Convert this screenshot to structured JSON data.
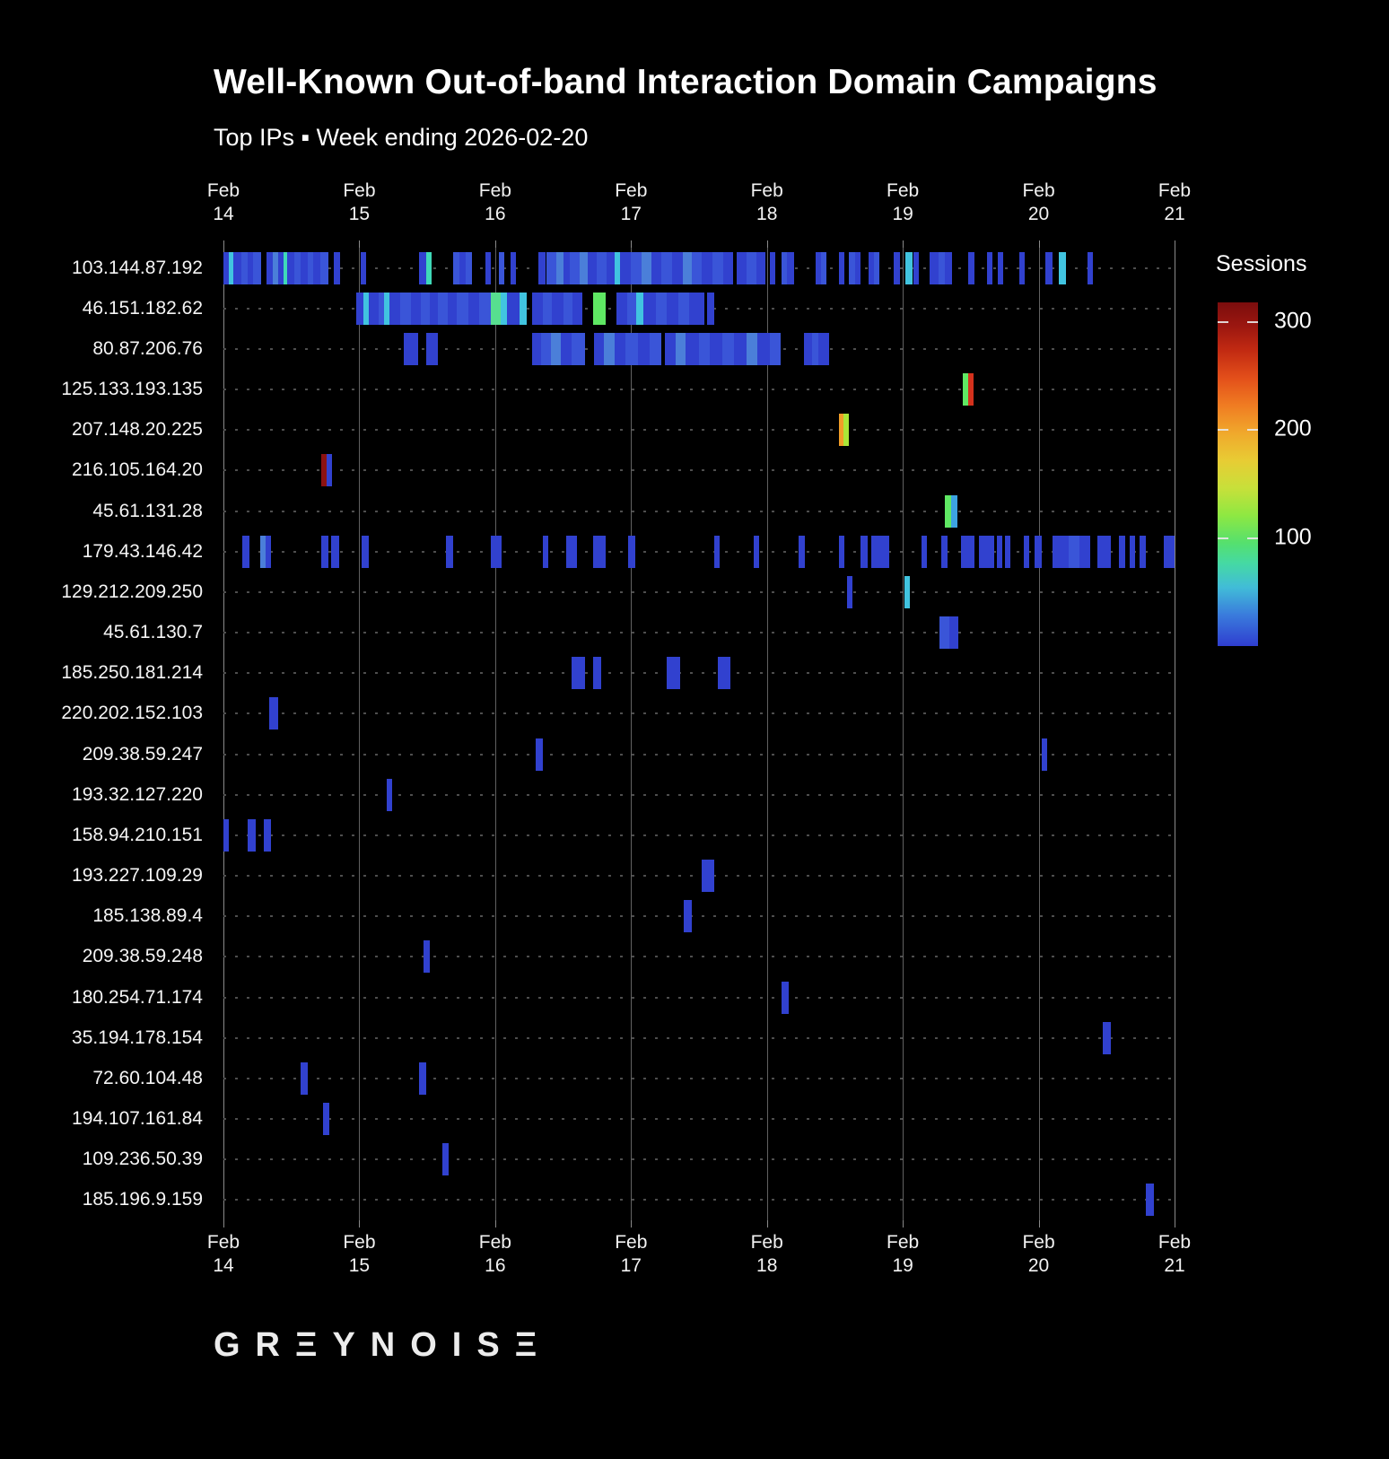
{
  "title": "Well-Known Out-of-band Interaction Domain Campaigns",
  "subtitle": "Top IPs ▪ Week ending 2026-02-20",
  "logo": "GRΞYNOISΞ",
  "axis": {
    "day_labels": [
      {
        "month": "Feb",
        "day": "14"
      },
      {
        "month": "Feb",
        "day": "15"
      },
      {
        "month": "Feb",
        "day": "16"
      },
      {
        "month": "Feb",
        "day": "17"
      },
      {
        "month": "Feb",
        "day": "18"
      },
      {
        "month": "Feb",
        "day": "19"
      },
      {
        "month": "Feb",
        "day": "20"
      },
      {
        "month": "Feb",
        "day": "21"
      }
    ]
  },
  "legend": {
    "title": "Sessions"
  },
  "chart_data": {
    "type": "heatmap",
    "title": "Well-Known Out-of-band Interaction Domain Campaigns",
    "subtitle": "Top IPs ▪ Week ending 2026-02-20",
    "x_axis": {
      "unit": "days since Feb 14",
      "range": [
        0,
        7
      ],
      "tick_labels": [
        "Feb 14",
        "Feb 15",
        "Feb 16",
        "Feb 17",
        "Feb 18",
        "Feb 19",
        "Feb 20",
        "Feb 21"
      ]
    },
    "legend_title": "Sessions",
    "color_scale": {
      "min": 0,
      "max": 317,
      "ticks": [
        300,
        200,
        100
      ],
      "style": "jet (blue=low, dark red=high)"
    },
    "palette": {
      "b": {
        "hex": "#3141cf",
        "sessions": 20
      },
      "b2": {
        "hex": "#3a55d8",
        "sessions": 35
      },
      "lb": {
        "hex": "#4b7fd9",
        "sessions": 55
      },
      "sb": {
        "hex": "#3da3e2",
        "sessions": 65
      },
      "cy": {
        "hex": "#41c4e0",
        "sessions": 80
      },
      "tl": {
        "hex": "#3fd9b8",
        "sessions": 95
      },
      "sg": {
        "hex": "#57de8f",
        "sessions": 110
      },
      "gr": {
        "hex": "#5fe863",
        "sessions": 125
      },
      "yg": {
        "hex": "#aae637",
        "sessions": 165
      },
      "or": {
        "hex": "#f09d28",
        "sessions": 220
      },
      "rd": {
        "hex": "#d4311c",
        "sessions": 275
      },
      "dr": {
        "hex": "#8c1211",
        "sessions": 310
      }
    },
    "rows": [
      {
        "ip": "103.144.87.192",
        "segments": [
          [
            0.0,
            0.04,
            "b"
          ],
          [
            0.04,
            0.07,
            "cy"
          ],
          [
            0.07,
            0.13,
            "b"
          ],
          [
            0.13,
            0.18,
            "b2"
          ],
          [
            0.18,
            0.22,
            "b"
          ],
          [
            0.22,
            0.28,
            "b2"
          ],
          [
            0.32,
            0.36,
            "b"
          ],
          [
            0.36,
            0.4,
            "lb"
          ],
          [
            0.4,
            0.44,
            "b"
          ],
          [
            0.44,
            0.47,
            "tl"
          ],
          [
            0.47,
            0.52,
            "b"
          ],
          [
            0.52,
            0.57,
            "b2"
          ],
          [
            0.57,
            0.62,
            "b"
          ],
          [
            0.62,
            0.66,
            "b2"
          ],
          [
            0.66,
            0.71,
            "b"
          ],
          [
            0.71,
            0.77,
            "b2"
          ],
          [
            0.81,
            0.86,
            "b"
          ],
          [
            1.01,
            1.05,
            "b"
          ],
          [
            1.44,
            1.49,
            "b"
          ],
          [
            1.49,
            1.53,
            "tl"
          ],
          [
            1.69,
            1.74,
            "b2"
          ],
          [
            1.74,
            1.78,
            "b"
          ],
          [
            1.78,
            1.83,
            "b2"
          ],
          [
            1.93,
            1.96,
            "b"
          ],
          [
            2.03,
            2.06,
            "b2"
          ],
          [
            2.11,
            2.14,
            "b"
          ],
          [
            2.32,
            2.37,
            "b"
          ],
          [
            2.38,
            2.45,
            "b2"
          ],
          [
            2.45,
            2.5,
            "lb"
          ],
          [
            2.5,
            2.55,
            "b"
          ],
          [
            2.55,
            2.62,
            "b2"
          ],
          [
            2.62,
            2.68,
            "lb"
          ],
          [
            2.68,
            2.75,
            "b"
          ],
          [
            2.75,
            2.82,
            "b2"
          ],
          [
            2.82,
            2.88,
            "b"
          ],
          [
            2.88,
            2.92,
            "cy"
          ],
          [
            2.92,
            3.0,
            "b"
          ],
          [
            3.0,
            3.08,
            "b2"
          ],
          [
            3.08,
            3.15,
            "lb"
          ],
          [
            3.15,
            3.22,
            "b"
          ],
          [
            3.22,
            3.3,
            "b2"
          ],
          [
            3.3,
            3.38,
            "b"
          ],
          [
            3.38,
            3.45,
            "lb"
          ],
          [
            3.45,
            3.52,
            "b2"
          ],
          [
            3.52,
            3.6,
            "b"
          ],
          [
            3.6,
            3.68,
            "b2"
          ],
          [
            3.68,
            3.75,
            "b"
          ],
          [
            3.78,
            3.85,
            "b"
          ],
          [
            3.85,
            3.92,
            "b2"
          ],
          [
            3.92,
            3.99,
            "b"
          ],
          [
            4.02,
            4.06,
            "b"
          ],
          [
            4.11,
            4.15,
            "b2"
          ],
          [
            4.15,
            4.2,
            "b"
          ],
          [
            4.36,
            4.4,
            "b"
          ],
          [
            4.4,
            4.44,
            "b2"
          ],
          [
            4.53,
            4.57,
            "b"
          ],
          [
            4.6,
            4.65,
            "b2"
          ],
          [
            4.65,
            4.69,
            "b"
          ],
          [
            4.75,
            4.79,
            "b"
          ],
          [
            4.79,
            4.82,
            "b2"
          ],
          [
            4.93,
            4.98,
            "b"
          ],
          [
            5.02,
            5.07,
            "cy"
          ],
          [
            5.08,
            5.12,
            "b"
          ],
          [
            5.2,
            5.26,
            "b"
          ],
          [
            5.26,
            5.31,
            "b2"
          ],
          [
            5.31,
            5.36,
            "b"
          ],
          [
            5.48,
            5.53,
            "b"
          ],
          [
            5.62,
            5.66,
            "b"
          ],
          [
            5.7,
            5.74,
            "b"
          ],
          [
            5.86,
            5.9,
            "b"
          ],
          [
            6.05,
            6.1,
            "b"
          ],
          [
            6.15,
            6.2,
            "cy"
          ],
          [
            6.36,
            6.4,
            "b"
          ]
        ]
      },
      {
        "ip": "46.151.182.62",
        "segments": [
          [
            0.98,
            1.03,
            "b"
          ],
          [
            1.03,
            1.07,
            "cy"
          ],
          [
            1.07,
            1.14,
            "b"
          ],
          [
            1.14,
            1.18,
            "b2"
          ],
          [
            1.18,
            1.22,
            "cy"
          ],
          [
            1.22,
            1.3,
            "b"
          ],
          [
            1.3,
            1.38,
            "b2"
          ],
          [
            1.38,
            1.45,
            "b"
          ],
          [
            1.45,
            1.52,
            "b2"
          ],
          [
            1.52,
            1.58,
            "b"
          ],
          [
            1.58,
            1.65,
            "b2"
          ],
          [
            1.65,
            1.72,
            "b"
          ],
          [
            1.72,
            1.8,
            "b2"
          ],
          [
            1.8,
            1.88,
            "b"
          ],
          [
            1.88,
            1.97,
            "b2"
          ],
          [
            1.97,
            2.04,
            "sg"
          ],
          [
            2.04,
            2.09,
            "cy"
          ],
          [
            2.09,
            2.18,
            "b"
          ],
          [
            2.18,
            2.23,
            "cy"
          ],
          [
            2.27,
            2.35,
            "b"
          ],
          [
            2.35,
            2.42,
            "b2"
          ],
          [
            2.42,
            2.5,
            "b"
          ],
          [
            2.5,
            2.57,
            "b2"
          ],
          [
            2.57,
            2.64,
            "b"
          ],
          [
            2.72,
            2.81,
            "gr"
          ],
          [
            2.89,
            2.97,
            "b"
          ],
          [
            2.97,
            3.04,
            "b2"
          ],
          [
            3.04,
            3.09,
            "cy"
          ],
          [
            3.09,
            3.18,
            "b"
          ],
          [
            3.18,
            3.26,
            "b2"
          ],
          [
            3.26,
            3.35,
            "b"
          ],
          [
            3.35,
            3.43,
            "b2"
          ],
          [
            3.43,
            3.54,
            "b"
          ],
          [
            3.56,
            3.61,
            "b"
          ]
        ]
      },
      {
        "ip": "80.87.206.76",
        "segments": [
          [
            1.33,
            1.43,
            "b"
          ],
          [
            1.49,
            1.58,
            "b"
          ],
          [
            2.27,
            2.34,
            "b"
          ],
          [
            2.34,
            2.41,
            "b2"
          ],
          [
            2.41,
            2.48,
            "lb"
          ],
          [
            2.48,
            2.56,
            "b"
          ],
          [
            2.56,
            2.66,
            "b2"
          ],
          [
            2.73,
            2.8,
            "b"
          ],
          [
            2.8,
            2.88,
            "lb"
          ],
          [
            2.88,
            2.96,
            "b"
          ],
          [
            2.96,
            3.05,
            "b2"
          ],
          [
            3.05,
            3.14,
            "b"
          ],
          [
            3.14,
            3.22,
            "b2"
          ],
          [
            3.25,
            3.33,
            "b"
          ],
          [
            3.33,
            3.4,
            "lb"
          ],
          [
            3.4,
            3.5,
            "b"
          ],
          [
            3.5,
            3.58,
            "b2"
          ],
          [
            3.58,
            3.67,
            "b"
          ],
          [
            3.67,
            3.76,
            "b2"
          ],
          [
            3.76,
            3.85,
            "b"
          ],
          [
            3.85,
            3.93,
            "lb"
          ],
          [
            3.93,
            4.02,
            "b"
          ],
          [
            4.02,
            4.1,
            "b2"
          ],
          [
            4.27,
            4.33,
            "b"
          ],
          [
            4.33,
            4.38,
            "b2"
          ],
          [
            4.38,
            4.46,
            "b"
          ]
        ]
      },
      {
        "ip": "125.133.193.135",
        "segments": [
          [
            5.44,
            5.48,
            "gr"
          ],
          [
            5.48,
            5.52,
            "rd"
          ]
        ]
      },
      {
        "ip": "207.148.20.225",
        "segments": [
          [
            4.53,
            4.565,
            "or"
          ],
          [
            4.565,
            4.6,
            "yg"
          ]
        ]
      },
      {
        "ip": "216.105.164.20",
        "segments": [
          [
            0.72,
            0.76,
            "dr"
          ],
          [
            0.76,
            0.8,
            "b"
          ]
        ]
      },
      {
        "ip": "45.61.131.28",
        "segments": [
          [
            5.31,
            5.355,
            "gr"
          ],
          [
            5.355,
            5.4,
            "sb"
          ]
        ]
      },
      {
        "ip": "179.43.146.42",
        "segments": [
          [
            0.14,
            0.19,
            "b"
          ],
          [
            0.27,
            0.31,
            "lb"
          ],
          [
            0.31,
            0.35,
            "b"
          ],
          [
            0.72,
            0.77,
            "b"
          ],
          [
            0.79,
            0.85,
            "b"
          ],
          [
            1.02,
            1.07,
            "b"
          ],
          [
            1.64,
            1.69,
            "b"
          ],
          [
            1.97,
            2.05,
            "b"
          ],
          [
            2.35,
            2.39,
            "b"
          ],
          [
            2.52,
            2.6,
            "b"
          ],
          [
            2.72,
            2.81,
            "b"
          ],
          [
            2.98,
            3.03,
            "b"
          ],
          [
            3.61,
            3.65,
            "b"
          ],
          [
            3.9,
            3.94,
            "b"
          ],
          [
            4.23,
            4.28,
            "b"
          ],
          [
            4.53,
            4.57,
            "b"
          ],
          [
            4.69,
            4.74,
            "b"
          ],
          [
            4.77,
            4.9,
            "b"
          ],
          [
            5.14,
            5.18,
            "b"
          ],
          [
            5.28,
            5.33,
            "b"
          ],
          [
            5.43,
            5.53,
            "b"
          ],
          [
            5.56,
            5.67,
            "b"
          ],
          [
            5.69,
            5.73,
            "b"
          ],
          [
            5.75,
            5.79,
            "b"
          ],
          [
            5.89,
            5.93,
            "b"
          ],
          [
            5.97,
            6.02,
            "b"
          ],
          [
            6.1,
            6.22,
            "b"
          ],
          [
            6.22,
            6.3,
            "b2"
          ],
          [
            6.3,
            6.38,
            "b"
          ],
          [
            6.43,
            6.53,
            "b"
          ],
          [
            6.59,
            6.64,
            "b"
          ],
          [
            6.67,
            6.71,
            "b"
          ],
          [
            6.74,
            6.79,
            "b"
          ],
          [
            6.92,
            7.0,
            "b"
          ]
        ]
      },
      {
        "ip": "129.212.209.250",
        "segments": [
          [
            4.59,
            4.63,
            "b"
          ],
          [
            5.01,
            5.05,
            "cy"
          ]
        ]
      },
      {
        "ip": "45.61.130.7",
        "segments": [
          [
            5.27,
            5.34,
            "b2"
          ],
          [
            5.34,
            5.41,
            "b"
          ]
        ]
      },
      {
        "ip": "185.250.181.214",
        "segments": [
          [
            2.56,
            2.66,
            "b"
          ],
          [
            2.72,
            2.78,
            "b"
          ],
          [
            3.26,
            3.36,
            "b"
          ],
          [
            3.64,
            3.73,
            "b"
          ]
        ]
      },
      {
        "ip": "220.202.152.103",
        "segments": [
          [
            0.34,
            0.4,
            "b"
          ]
        ]
      },
      {
        "ip": "209.38.59.247",
        "segments": [
          [
            2.3,
            2.35,
            "b"
          ],
          [
            6.02,
            6.06,
            "b"
          ]
        ]
      },
      {
        "ip": "193.32.127.220",
        "segments": [
          [
            1.2,
            1.24,
            "b"
          ]
        ]
      },
      {
        "ip": "158.94.210.151",
        "segments": [
          [
            0.0,
            0.03,
            "b"
          ],
          [
            0.18,
            0.24,
            "b"
          ],
          [
            0.3,
            0.35,
            "b"
          ]
        ]
      },
      {
        "ip": "193.227.109.29",
        "segments": [
          [
            3.52,
            3.61,
            "b"
          ]
        ]
      },
      {
        "ip": "185.138.89.4",
        "segments": [
          [
            3.39,
            3.45,
            "b"
          ]
        ]
      },
      {
        "ip": "209.38.59.248",
        "segments": [
          [
            1.47,
            1.52,
            "b"
          ]
        ]
      },
      {
        "ip": "180.254.71.174",
        "segments": [
          [
            4.11,
            4.16,
            "b"
          ]
        ]
      },
      {
        "ip": "35.194.178.154",
        "segments": [
          [
            6.47,
            6.53,
            "b"
          ]
        ]
      },
      {
        "ip": "72.60.104.48",
        "segments": [
          [
            0.57,
            0.62,
            "b"
          ],
          [
            1.44,
            1.49,
            "b"
          ]
        ]
      },
      {
        "ip": "194.107.161.84",
        "segments": [
          [
            0.73,
            0.78,
            "b"
          ]
        ]
      },
      {
        "ip": "109.236.50.39",
        "segments": [
          [
            1.61,
            1.66,
            "b"
          ]
        ]
      },
      {
        "ip": "185.196.9.159",
        "segments": [
          [
            6.79,
            6.85,
            "b"
          ]
        ]
      }
    ]
  }
}
